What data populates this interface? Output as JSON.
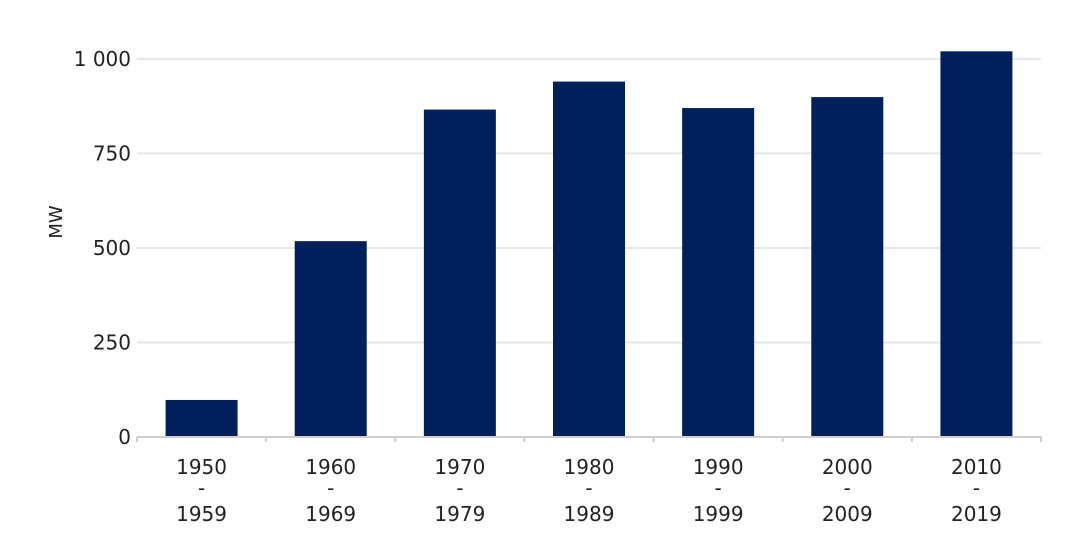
{
  "chart_data": {
    "type": "bar",
    "ylabel": "MW",
    "ylim": [
      0,
      1050
    ],
    "yticks": [
      0,
      250,
      500,
      750,
      1000
    ],
    "ytick_labels": [
      "0",
      "250",
      "500",
      "750",
      "1 000"
    ],
    "grid": true,
    "categories": [
      [
        "1950",
        "-",
        "1959"
      ],
      [
        "1960",
        "-",
        "1969"
      ],
      [
        "1970",
        "-",
        "1979"
      ],
      [
        "1980",
        "-",
        "1989"
      ],
      [
        "1990",
        "-",
        "1999"
      ],
      [
        "2000",
        "-",
        "2009"
      ],
      [
        "2010",
        "-",
        "2019"
      ]
    ],
    "values": [
      98,
      518,
      866,
      940,
      870,
      899,
      1020
    ],
    "colors": {
      "bar": "#00205b",
      "grid": "#e6e6e6",
      "axis": "#cfcfcf"
    }
  }
}
